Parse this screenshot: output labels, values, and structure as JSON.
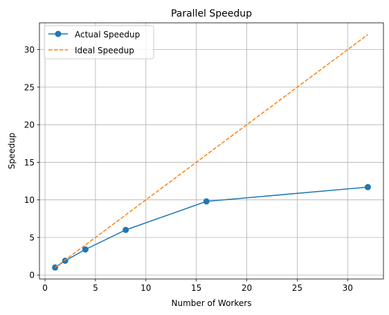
{
  "chart_data": {
    "type": "line",
    "title": "Parallel Speedup",
    "xlabel": "Number of Workers",
    "ylabel": "Speedup",
    "xlim": [
      -0.55,
      33.55
    ],
    "ylim": [
      -0.53,
      33.56
    ],
    "xticks": [
      0,
      5,
      10,
      15,
      20,
      25,
      30
    ],
    "yticks": [
      0,
      5,
      10,
      15,
      20,
      25,
      30
    ],
    "grid": true,
    "legend_position": "top-left",
    "series": [
      {
        "name": "Actual Speedup",
        "color": "#1f77b4",
        "style": "solid",
        "marker": "circle",
        "x": [
          1,
          2,
          4,
          8,
          16,
          32
        ],
        "y": [
          1.0,
          1.9,
          3.4,
          6.0,
          9.8,
          11.7
        ]
      },
      {
        "name": "Ideal Speedup",
        "color": "#ff7f0e",
        "style": "dashed",
        "marker": "none",
        "x": [
          1,
          2,
          4,
          8,
          16,
          32
        ],
        "y": [
          1,
          2,
          4,
          8,
          16,
          32
        ]
      }
    ]
  }
}
